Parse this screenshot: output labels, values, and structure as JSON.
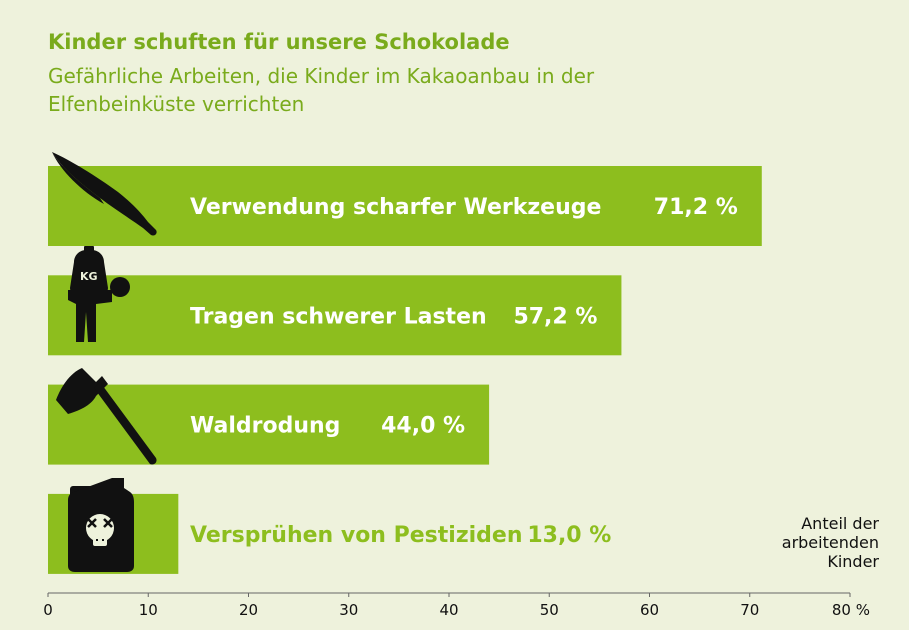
{
  "header": {
    "title": "Kinder schuften für unsere Schokolade",
    "subtitle": "Gefährliche Arbeiten, die Kinder im Kakaoanbau in der Elfenbeinküste verrichten"
  },
  "axis_note": {
    "line1": "Anteil der",
    "line2": "arbeitenden",
    "line3": "Kinder"
  },
  "colors": {
    "bar": "#8dbe1e",
    "background": "#eef2dc",
    "label_on_bar": "#ffffff",
    "label_off_bar": "#8dbe1e",
    "icon": "#111111"
  },
  "icons": [
    "machete-icon",
    "heavy-load-carrier-icon",
    "axe-icon",
    "poison-canister-icon"
  ],
  "chart_data": {
    "type": "bar",
    "orientation": "horizontal",
    "title": "Kinder schuften für unsere Schokolade",
    "subtitle": "Gefährliche Arbeiten, die Kinder im Kakaoanbau in der Elfenbeinküste verrichten",
    "categories": [
      "Verwendung scharfer Werkzeuge",
      "Tragen schwerer Lasten",
      "Waldrodung",
      "Versprühen von Pestiziden"
    ],
    "values": [
      71.2,
      57.2,
      44.0,
      13.0
    ],
    "value_labels": [
      "71,2 %",
      "57,2 %",
      "44,0 %",
      "13,0 %"
    ],
    "xlim": [
      0,
      80
    ],
    "xticks": [
      0,
      10,
      20,
      30,
      40,
      50,
      60,
      70,
      80
    ],
    "xtick_labels": [
      "0",
      "10",
      "20",
      "30",
      "40",
      "50",
      "60",
      "70",
      "80 %"
    ],
    "xlabel": "Anteil der arbeitenden Kinder",
    "ylabel": "",
    "grid": false,
    "legend": "none"
  }
}
